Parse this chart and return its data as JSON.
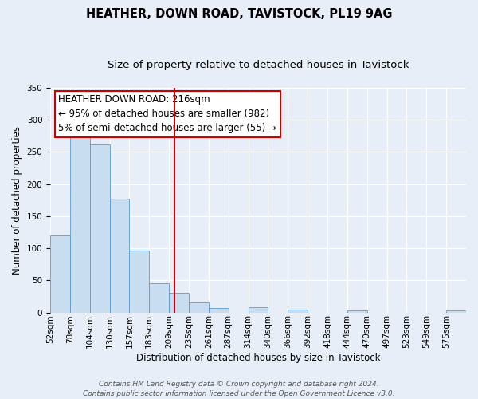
{
  "title": "HEATHER, DOWN ROAD, TAVISTOCK, PL19 9AG",
  "subtitle": "Size of property relative to detached houses in Tavistock",
  "xlabel": "Distribution of detached houses by size in Tavistock",
  "ylabel": "Number of detached properties",
  "bar_labels": [
    "52sqm",
    "78sqm",
    "104sqm",
    "130sqm",
    "157sqm",
    "183sqm",
    "209sqm",
    "235sqm",
    "261sqm",
    "287sqm",
    "314sqm",
    "340sqm",
    "366sqm",
    "392sqm",
    "418sqm",
    "444sqm",
    "470sqm",
    "497sqm",
    "523sqm",
    "549sqm",
    "575sqm"
  ],
  "bar_values": [
    120,
    282,
    262,
    177,
    96,
    46,
    30,
    16,
    7,
    0,
    8,
    0,
    5,
    0,
    0,
    3,
    0,
    0,
    0,
    0,
    3
  ],
  "bar_color": "#c9ddf0",
  "bar_edge_color": "#5b9bd5",
  "property_line_x": 6,
  "bin_edges_numeric": [
    0,
    1,
    2,
    3,
    4,
    5,
    6,
    7,
    8,
    9,
    10,
    11,
    12,
    13,
    14,
    15,
    16,
    17,
    18,
    19,
    20,
    21
  ],
  "annotation_title": "HEATHER DOWN ROAD: 216sqm",
  "annotation_line1": "← 95% of detached houses are smaller (982)",
  "annotation_line2": "5% of semi-detached houses are larger (55) →",
  "annotation_box_color": "#ffffff",
  "annotation_box_edge_color": "#cc0000",
  "vline_color": "#cc0000",
  "ylim": [
    0,
    350
  ],
  "yticks": [
    0,
    50,
    100,
    150,
    200,
    250,
    300,
    350
  ],
  "footer_line1": "Contains HM Land Registry data © Crown copyright and database right 2024.",
  "footer_line2": "Contains public sector information licensed under the Open Government Licence v3.0.",
  "background_color": "#e8eef7",
  "plot_bg_color": "#e8eef7",
  "grid_color": "#ffffff",
  "title_fontsize": 10.5,
  "subtitle_fontsize": 9.5,
  "axis_label_fontsize": 8.5,
  "tick_fontsize": 7.5,
  "annotation_title_fontsize": 9,
  "annotation_body_fontsize": 8.5,
  "footer_fontsize": 6.5
}
